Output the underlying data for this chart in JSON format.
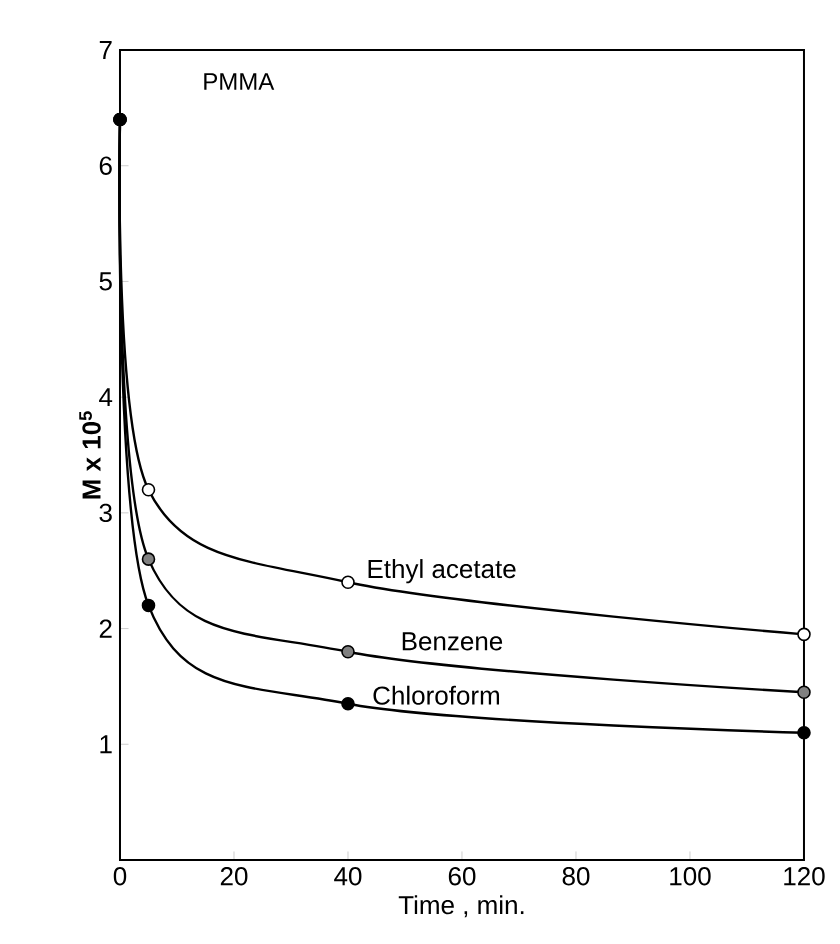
{
  "chart_data": {
    "type": "line",
    "xlabel": "Time , min.",
    "ylabel": "M x 10$^{5}$",
    "annotations": [
      "PMMA"
    ],
    "x": [
      0,
      5,
      40,
      120
    ],
    "series": [
      {
        "name": "Ethyl acetate",
        "color": "#000000",
        "values": [
          6.4,
          3.2,
          2.4,
          1.95
        ]
      },
      {
        "name": "Benzene",
        "color": "#000000",
        "values": [
          6.4,
          2.6,
          1.8,
          1.45
        ]
      },
      {
        "name": "Chloroform",
        "color": "#000000",
        "values": [
          6.4,
          2.2,
          1.35,
          1.1
        ]
      }
    ],
    "xlim": [
      0,
      120
    ],
    "ylim": [
      0,
      7
    ],
    "xticks": [
      0,
      20,
      40,
      60,
      80,
      100,
      120
    ],
    "yticks": [
      1,
      2,
      3,
      4,
      5,
      6,
      7
    ],
    "marker": "circle",
    "line_style": "solid",
    "grid": false
  }
}
